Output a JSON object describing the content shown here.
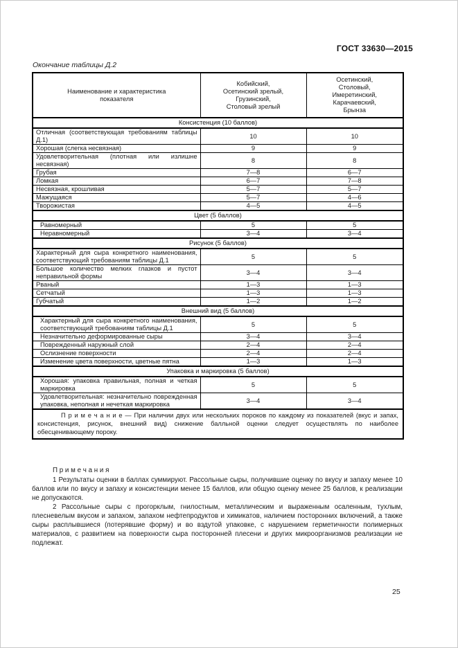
{
  "page": {
    "doc_code": "ГОСТ 33630—2015",
    "table_caption": "Окончание таблицы Д.2",
    "page_number": "25"
  },
  "table": {
    "columns": [
      {
        "lines": [
          "Наименование и характеристика",
          "показателя"
        ]
      },
      {
        "lines": [
          "Кобийский,",
          "Осетинский зрелый,",
          "Грузинский,",
          "Столовый зрелый"
        ]
      },
      {
        "lines": [
          "Осетинский,",
          "Столовый,",
          "Имеретинский,",
          "Карачаевский,",
          "Брынза"
        ]
      }
    ],
    "sections": [
      {
        "title": "Консистенция (10 баллов)",
        "rows": [
          {
            "label": "Отличная (соответствующая требованиям таблицы Д.1)",
            "values": [
              "10",
              "10"
            ],
            "indent": false
          },
          {
            "label": "Хорошая (слегка несвязная)",
            "values": [
              "9",
              "9"
            ],
            "indent": false
          },
          {
            "label": "Удовлетворительная (плотная или излишне несвязная)",
            "values": [
              "8",
              "8"
            ],
            "indent": false
          },
          {
            "label": "Грубая",
            "values": [
              "7—8",
              "6—7"
            ],
            "indent": false
          },
          {
            "label": "Ломкая",
            "values": [
              "6—7",
              "7—8"
            ],
            "indent": false
          },
          {
            "label": "Несвязная, крошливая",
            "values": [
              "5—7",
              "5—7"
            ],
            "indent": false
          },
          {
            "label": "Мажущаяся",
            "values": [
              "5—7",
              "4—6"
            ],
            "indent": false
          },
          {
            "label": "Творожистая",
            "values": [
              "4—5",
              "4—5"
            ],
            "indent": false
          }
        ]
      },
      {
        "title": "Цвет (5 баллов)",
        "rows": [
          {
            "label": "Равномерный",
            "values": [
              "5",
              "5"
            ],
            "indent": true
          },
          {
            "label": "Неравномерный",
            "values": [
              "3—4",
              "3—4"
            ],
            "indent": true
          }
        ]
      },
      {
        "title": "Рисунок (5 баллов)",
        "rows": [
          {
            "label": "Характерный для сыра конкретного наименования, соответствующий требованиям таблицы Д.1",
            "values": [
              "5",
              "5"
            ],
            "indent": false
          },
          {
            "label": "Большое количество мелких глазков и пустот неправильной формы",
            "values": [
              "3—4",
              "3—4"
            ],
            "indent": false
          },
          {
            "label": "Рваный",
            "values": [
              "1—3",
              "1—3"
            ],
            "indent": false
          },
          {
            "label": "Сетчатый",
            "values": [
              "1—3",
              "1—3"
            ],
            "indent": false
          },
          {
            "label": "Губчатый",
            "values": [
              "1—2",
              "1—2"
            ],
            "indent": false
          }
        ]
      },
      {
        "title": "Внешний вид (5 баллов)",
        "rows": [
          {
            "label": "Характерный для сыра конкретного наименования, соответствующий требованиям таблицы Д.1",
            "values": [
              "5",
              "5"
            ],
            "indent": true
          },
          {
            "label": "Незначительно деформированные сыры",
            "values": [
              "3—4",
              "3—4"
            ],
            "indent": true
          },
          {
            "label": "Поврежденный наружный слой",
            "values": [
              "2—4",
              "2—4"
            ],
            "indent": true
          },
          {
            "label": "Ослизнение поверхности",
            "values": [
              "2—4",
              "2—4"
            ],
            "indent": true
          },
          {
            "label": "Изменение цвета поверхности, цветные пятна",
            "values": [
              "1—3",
              "1—3"
            ],
            "indent": true
          }
        ]
      },
      {
        "title": "Упаковка и маркировка (5 баллов)",
        "rows": [
          {
            "label": "Хорошая: упаковка правильная, полная и четкая маркировка",
            "values": [
              "5",
              "5"
            ],
            "indent": true
          },
          {
            "label": "Удовлетворительная: незначительно поврежденная упаковка, неполная и нечеткая маркировка",
            "values": [
              "3—4",
              "3—4"
            ],
            "indent": true
          }
        ]
      }
    ],
    "note_in_table": "П р и м е ч а н и е — При наличии двух или нескольких пороков по каждому из показателей (вкус и запах, консистенция, рисунок, внешний вид) снижение балльной оценки следует осуществлять по наиболее обесценивающему пороку."
  },
  "notes": {
    "title": "П р и м е ч а н и я",
    "items": [
      "1 Результаты оценки в баллах суммируют. Рассольные сыры, получившие оценку по вкусу и запаху менее 10 баллов или по вкусу и запаху и консистенции менее 15 баллов, или общую оценку менее 25 баллов, к реализации не допускаются.",
      "2 Рассольные сыры с прогорклым, гнилостным, металлическим и выраженным осаленным, тухлым, плесневелым вкусом и запахом, запахом нефтепродуктов и химикатов, наличием посторонних включений, а также сыры расплывшиеся (потерявшие форму) и во вздутой упаковке, с нарушением герметичности полимерных материалов, с развитием на поверхности сыра посторонней плесени и других микроорганизмов реализации не подлежат."
    ]
  }
}
